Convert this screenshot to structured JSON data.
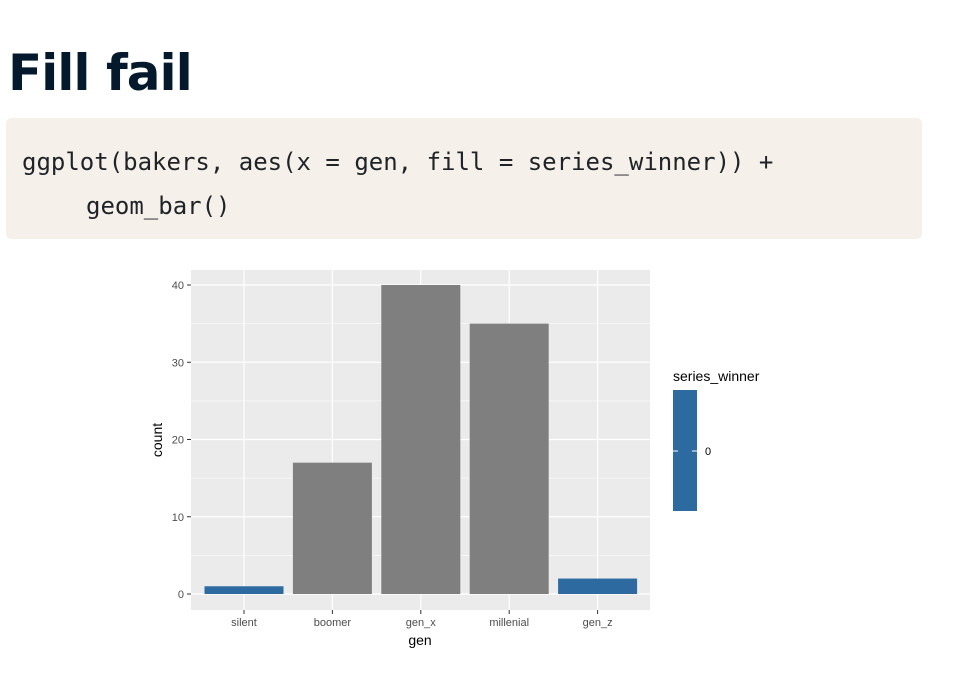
{
  "slide": {
    "title": "Fill fail"
  },
  "code": {
    "lines": [
      "ggplot(bakers, aes(x = gen, fill = series_winner)) +",
      "geom_bar()"
    ]
  },
  "colors": {
    "panel_background": "#ebebeb",
    "grid": "#ffffff",
    "bar_grey": "#7f7f7f",
    "bar_blue": "#2d6aa0",
    "title_text": "#05192d",
    "code_background": "#f5f1ea"
  },
  "chart_data": {
    "type": "bar",
    "categories": [
      "silent",
      "boomer",
      "gen_x",
      "millenial",
      "gen_z"
    ],
    "values": [
      1,
      17,
      40,
      35,
      2
    ],
    "bar_fill": [
      "blue",
      "grey",
      "grey",
      "grey",
      "blue"
    ],
    "xlabel": "gen",
    "ylabel": "count",
    "ylim": [
      0,
      40
    ],
    "yticks": [
      0,
      10,
      20,
      30,
      40
    ],
    "grid": true,
    "legend": {
      "title": "series_winner",
      "placement": "right",
      "type": "colorbar",
      "labels": [
        "0"
      ]
    }
  }
}
